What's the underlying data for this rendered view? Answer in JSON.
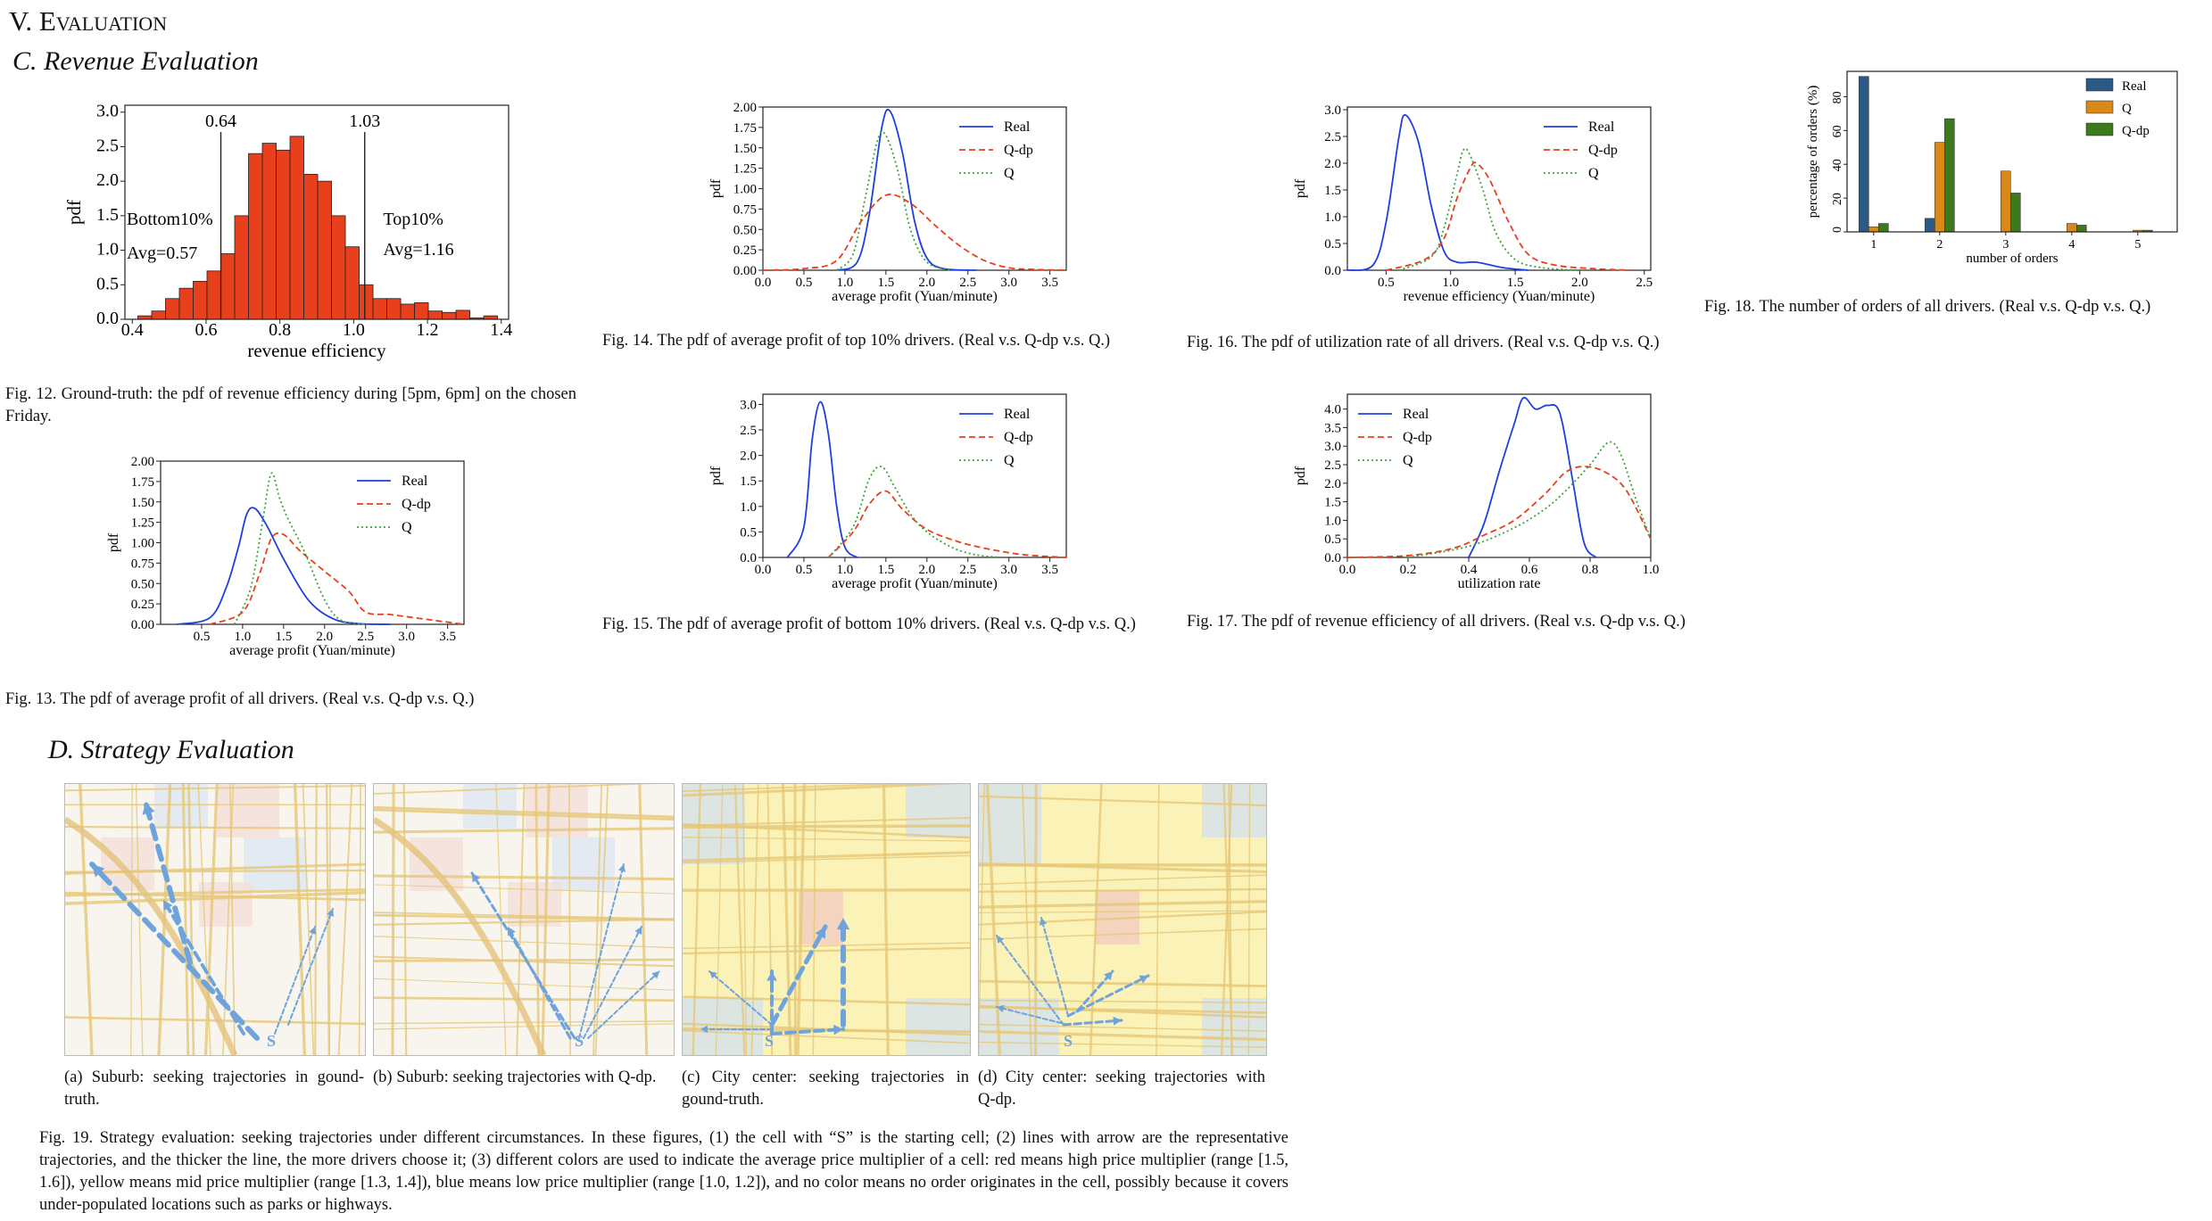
{
  "section_title": "V. Evaluation",
  "subsection_c": "C. Revenue Evaluation",
  "subsection_d": "D. Strategy Evaluation",
  "captions": {
    "fig12": "Fig. 12.   Ground-truth: the pdf of revenue efficiency during [5pm, 6pm] on the chosen Friday.",
    "fig13": "Fig. 13.   The pdf of average profit of all drivers. (Real v.s. Q-dp v.s. Q.)",
    "fig14": "Fig. 14.   The pdf of average profit of top 10% drivers. (Real v.s. Q-dp v.s. Q.)",
    "fig15": "Fig. 15.   The pdf of average profit of bottom 10% drivers. (Real v.s. Q-dp v.s. Q.)",
    "fig16": "Fig. 16.   The pdf of utilization rate of all drivers. (Real v.s. Q-dp v.s. Q.)",
    "fig17": "Fig. 17.   The pdf of revenue efficiency of all drivers. (Real v.s. Q-dp v.s. Q.)",
    "fig18": "Fig. 18.   The number of orders of all drivers. (Real v.s. Q-dp v.s. Q.)",
    "fig19": "Fig. 19.   Strategy evaluation: seeking trajectories under different circumstances. In these figures, (1) the cell with “S” is the starting cell; (2) lines with arrow are the representative trajectories, and the thicker the line, the more drivers choose it; (3) different colors are used to indicate the average price multiplier of a cell: red means high price multiplier (range [1.5, 1.6]), yellow means mid price multiplier (range [1.3, 1.4]), blue means low price multiplier (range [1.0, 1.2]), and no color means no order originates in the cell, possibly because it covers under-populated locations such as parks or highways.",
    "sub_a": "(a) Suburb: seeking trajectories in gound-truth.",
    "sub_b": "(b) Suburb: seeking trajectories with Q-dp.",
    "sub_c": "(c) City center: seeking trajectories in gound-truth.",
    "sub_d": "(d) City center: seeking trajectories with Q-dp."
  },
  "colors": {
    "real": "#1f3fe0",
    "qdp": "#e8401c",
    "q": "#3aa33a",
    "hist": "#e8401c",
    "bar_real": "#2a5a85",
    "bar_q": "#d9891a",
    "bar_qdp": "#3d7a1e"
  },
  "chart_data": [
    {
      "id": "fig12",
      "type": "bar",
      "xlabel": "revenue efficiency",
      "ylabel": "pdf",
      "xlim": [
        0.38,
        1.42
      ],
      "ylim": [
        0,
        3.1
      ],
      "xticks": [
        "0.4",
        "0.6",
        "0.8",
        "1.0",
        "1.2",
        "1.4"
      ],
      "yticks": [
        "0.0",
        "0.5",
        "1.0",
        "1.5",
        "2.0",
        "2.5",
        "3.0"
      ],
      "bin_start": 0.415,
      "bin_width": 0.0375,
      "values": [
        0.05,
        0.12,
        0.3,
        0.45,
        0.55,
        0.7,
        0.95,
        1.5,
        2.4,
        2.55,
        2.45,
        2.65,
        2.1,
        2.0,
        1.5,
        1.05,
        0.5,
        0.3,
        0.3,
        0.22,
        0.24,
        0.12,
        0.1,
        0.13,
        0.02,
        0.05
      ],
      "annotations": [
        "0.64",
        "1.03",
        "Bottom10%",
        "Avg=0.57",
        "Top10%",
        "Avg=1.16"
      ],
      "vlines": [
        0.64,
        1.03
      ]
    },
    {
      "id": "fig13",
      "type": "line",
      "xlabel": "average profit (Yuan/minute)",
      "ylabel": "pdf",
      "xlim": [
        0,
        3.7
      ],
      "ylim": [
        0,
        2.0
      ],
      "xticks": [
        "0.5",
        "1.0",
        "1.5",
        "2.0",
        "2.5",
        "3.0",
        "3.5"
      ],
      "yticks": [
        "0.00",
        "0.25",
        "0.50",
        "0.75",
        "1.00",
        "1.25",
        "1.50",
        "1.75",
        "2.00"
      ],
      "legend": [
        "Real",
        "Q-dp",
        "Q"
      ],
      "legend_position": "top-right",
      "series": [
        {
          "name": "Real",
          "x": [
            0.2,
            0.6,
            0.8,
            0.95,
            1.05,
            1.15,
            1.3,
            1.5,
            1.8,
            2.1,
            2.4,
            2.8
          ],
          "y": [
            0,
            0.08,
            0.45,
            0.95,
            1.35,
            1.42,
            1.2,
            0.8,
            0.3,
            0.07,
            0.01,
            0
          ]
        },
        {
          "name": "Q-dp",
          "x": [
            0.6,
            1.0,
            1.2,
            1.35,
            1.5,
            1.7,
            2.0,
            2.3,
            2.5,
            2.8,
            3.1,
            3.4,
            3.7
          ],
          "y": [
            0,
            0.15,
            0.6,
            1.05,
            1.1,
            0.9,
            0.65,
            0.4,
            0.15,
            0.12,
            0.08,
            0.04,
            0
          ]
        },
        {
          "name": "Q",
          "x": [
            0.9,
            1.1,
            1.25,
            1.35,
            1.45,
            1.55,
            1.75,
            2.0,
            2.2,
            2.5
          ],
          "y": [
            0,
            0.45,
            1.3,
            1.85,
            1.55,
            1.3,
            0.9,
            0.3,
            0.05,
            0
          ]
        }
      ]
    },
    {
      "id": "fig14",
      "type": "line",
      "xlabel": "average profit (Yuan/minute)",
      "ylabel": "pdf",
      "xlim": [
        0,
        3.7
      ],
      "ylim": [
        0,
        2.0
      ],
      "xticks": [
        "0.0",
        "0.5",
        "1.0",
        "1.5",
        "2.0",
        "2.5",
        "3.0",
        "3.5"
      ],
      "yticks": [
        "0.00",
        "0.25",
        "0.50",
        "0.75",
        "1.00",
        "1.25",
        "1.50",
        "1.75",
        "2.00"
      ],
      "legend": [
        "Real",
        "Q-dp",
        "Q"
      ],
      "legend_position": "top-right",
      "series": [
        {
          "name": "Real",
          "x": [
            0.9,
            1.15,
            1.3,
            1.45,
            1.55,
            1.7,
            1.85,
            2.0,
            2.2,
            2.6
          ],
          "y": [
            0,
            0.1,
            0.7,
            1.75,
            1.95,
            1.45,
            0.6,
            0.15,
            0.02,
            0
          ]
        },
        {
          "name": "Q-dp",
          "x": [
            0,
            0.5,
            0.9,
            1.2,
            1.5,
            1.8,
            2.1,
            2.4,
            2.7,
            3.0,
            3.3,
            3.7
          ],
          "y": [
            0,
            0.02,
            0.12,
            0.6,
            0.92,
            0.82,
            0.55,
            0.3,
            0.12,
            0.03,
            0.01,
            0
          ]
        },
        {
          "name": "Q",
          "x": [
            0.9,
            1.1,
            1.25,
            1.4,
            1.5,
            1.65,
            1.8,
            2.0,
            2.3
          ],
          "y": [
            0,
            0.2,
            0.9,
            1.6,
            1.65,
            1.2,
            0.5,
            0.1,
            0
          ]
        }
      ]
    },
    {
      "id": "fig15",
      "type": "line",
      "xlabel": "average profit (Yuan/minute)",
      "ylabel": "pdf",
      "xlim": [
        0,
        3.7
      ],
      "ylim": [
        0,
        3.2
      ],
      "xticks": [
        "0.0",
        "0.5",
        "1.0",
        "1.5",
        "2.0",
        "2.5",
        "3.0",
        "3.5"
      ],
      "yticks": [
        "0.0",
        "0.5",
        "1.0",
        "1.5",
        "2.0",
        "2.5",
        "3.0"
      ],
      "legend": [
        "Real",
        "Q-dp",
        "Q"
      ],
      "legend_position": "top-right",
      "series": [
        {
          "name": "Real",
          "x": [
            0.3,
            0.5,
            0.6,
            0.7,
            0.8,
            0.9,
            1.0,
            1.15
          ],
          "y": [
            0,
            0.6,
            2.3,
            3.05,
            2.4,
            1.0,
            0.2,
            0
          ]
        },
        {
          "name": "Q-dp",
          "x": [
            0.8,
            1.1,
            1.3,
            1.5,
            1.7,
            2.0,
            2.4,
            2.8,
            3.2,
            3.7
          ],
          "y": [
            0,
            0.5,
            1.05,
            1.3,
            0.95,
            0.55,
            0.3,
            0.15,
            0.05,
            0
          ]
        },
        {
          "name": "Q",
          "x": [
            0.8,
            1.1,
            1.3,
            1.45,
            1.6,
            1.8,
            2.0,
            2.3,
            2.6,
            2.9
          ],
          "y": [
            0,
            0.6,
            1.55,
            1.78,
            1.4,
            0.85,
            0.5,
            0.2,
            0.05,
            0
          ]
        }
      ]
    },
    {
      "id": "fig16",
      "type": "line",
      "xlabel": "revenue efficiency (Yuan/minute)",
      "ylabel": "pdf",
      "xlim": [
        0.2,
        2.55
      ],
      "ylim": [
        0,
        3.05
      ],
      "xticks": [
        "0.5",
        "1.0",
        "1.5",
        "2.0",
        "2.5"
      ],
      "yticks": [
        "0.0",
        "0.5",
        "1.0",
        "1.5",
        "2.0",
        "2.5",
        "3.0"
      ],
      "legend": [
        "Real",
        "Q-dp",
        "Q"
      ],
      "legend_position": "top-right",
      "series": [
        {
          "name": "Real",
          "x": [
            0.2,
            0.4,
            0.5,
            0.6,
            0.65,
            0.75,
            0.85,
            0.95,
            1.05,
            1.2,
            1.4,
            1.6
          ],
          "y": [
            0,
            0.1,
            0.9,
            2.5,
            2.9,
            2.4,
            1.2,
            0.35,
            0.15,
            0.15,
            0.05,
            0
          ]
        },
        {
          "name": "Q-dp",
          "x": [
            0.5,
            0.8,
            0.95,
            1.05,
            1.15,
            1.2,
            1.3,
            1.45,
            1.6,
            1.8,
            2.1,
            2.4
          ],
          "y": [
            0,
            0.2,
            0.6,
            1.35,
            1.9,
            2.0,
            1.7,
            0.9,
            0.3,
            0.1,
            0.03,
            0
          ]
        },
        {
          "name": "Q",
          "x": [
            0.6,
            0.85,
            0.95,
            1.05,
            1.1,
            1.15,
            1.25,
            1.35,
            1.5,
            1.7,
            2.0
          ],
          "y": [
            0,
            0.25,
            0.8,
            1.8,
            2.25,
            2.15,
            1.5,
            0.7,
            0.2,
            0.05,
            0
          ]
        }
      ]
    },
    {
      "id": "fig17",
      "type": "line",
      "xlabel": "utilization rate",
      "ylabel": "pdf",
      "xlim": [
        0,
        1.0
      ],
      "ylim": [
        0,
        4.4
      ],
      "xticks": [
        "0.0",
        "0.2",
        "0.4",
        "0.6",
        "0.8",
        "1.0"
      ],
      "yticks": [
        "0.0",
        "0.5",
        "1.0",
        "1.5",
        "2.0",
        "2.5",
        "3.0",
        "3.5",
        "4.0"
      ],
      "legend": [
        "Real",
        "Q-dp",
        "Q"
      ],
      "legend_position": "top-left",
      "series": [
        {
          "name": "Real",
          "x": [
            0.4,
            0.45,
            0.5,
            0.55,
            0.58,
            0.62,
            0.66,
            0.7,
            0.74,
            0.78,
            0.82
          ],
          "y": [
            0,
            0.9,
            2.3,
            3.6,
            4.3,
            4.0,
            4.1,
            3.9,
            2.2,
            0.4,
            0
          ]
        },
        {
          "name": "Q-dp",
          "x": [
            0.0,
            0.2,
            0.35,
            0.45,
            0.55,
            0.65,
            0.72,
            0.78,
            0.85,
            0.92,
            1.0
          ],
          "y": [
            0,
            0.05,
            0.25,
            0.6,
            1.0,
            1.7,
            2.3,
            2.45,
            2.3,
            1.8,
            0.5
          ]
        },
        {
          "name": "Q",
          "x": [
            0.2,
            0.4,
            0.55,
            0.65,
            0.72,
            0.8,
            0.86,
            0.9,
            0.95,
            1.0
          ],
          "y": [
            0,
            0.3,
            0.8,
            1.3,
            1.8,
            2.5,
            3.1,
            2.8,
            1.6,
            0.5
          ]
        }
      ]
    },
    {
      "id": "fig18",
      "type": "bar",
      "xlabel": "number of orders",
      "ylabel": "percentage of orders (%)",
      "categories": [
        "1",
        "2",
        "3",
        "4",
        "5"
      ],
      "ylim": [
        0,
        95
      ],
      "yticks": [
        "0",
        "20",
        "40",
        "60",
        "80"
      ],
      "legend": [
        "Real",
        "Q",
        "Q-dp"
      ],
      "legend_position": "top-right",
      "series": [
        {
          "name": "Real",
          "values": [
            92,
            8,
            0,
            0,
            0
          ]
        },
        {
          "name": "Q",
          "values": [
            3,
            53,
            36,
            5,
            1
          ]
        },
        {
          "name": "Q-dp",
          "values": [
            5,
            67,
            23,
            4,
            1
          ]
        }
      ]
    }
  ]
}
